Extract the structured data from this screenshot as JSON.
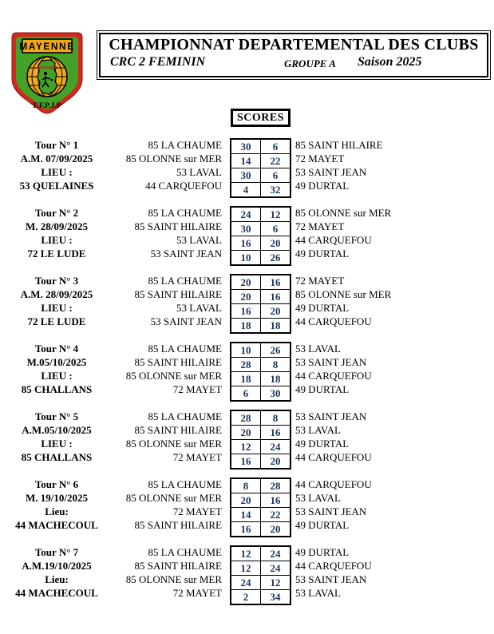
{
  "logo": {
    "region": "MAYENNE",
    "sport": "PETANQUE",
    "federation": "F.F.P.J.P",
    "colors": {
      "red": "#d3281e",
      "green": "#44a229",
      "gold": "#f0a818"
    }
  },
  "header": {
    "title": "CHAMPIONNAT DEPARTEMENTAL DES CLUBS",
    "competition": "CRC 2 FEMININ",
    "group": "GROUPE A",
    "season": "Saison 2025"
  },
  "scores_label": "SCORES",
  "colors": {
    "score_text": "#17365D"
  },
  "rounds": [
    {
      "tour": "Tour N° 1",
      "date": "A.M. 07/09/2025",
      "lieu_label": "LIEU :",
      "host": "53 QUELAINES",
      "matches": [
        {
          "home": "85 LA CHAUME",
          "home_score": "30",
          "away_score": "6",
          "away": "85 SAINT HILAIRE"
        },
        {
          "home": "85 OLONNE sur MER",
          "home_score": "14",
          "away_score": "22",
          "away": "72 MAYET"
        },
        {
          "home": "53 LAVAL",
          "home_score": "30",
          "away_score": "6",
          "away": "53 SAINT JEAN"
        },
        {
          "home": "44 CARQUEFOU",
          "home_score": "4",
          "away_score": "32",
          "away": "49 DURTAL"
        }
      ]
    },
    {
      "tour": "Tour N° 2",
      "date": "M. 28/09/2025",
      "lieu_label": "LIEU :",
      "host": "72 LE LUDE",
      "matches": [
        {
          "home": "85 LA CHAUME",
          "home_score": "24",
          "away_score": "12",
          "away": "85 OLONNE sur MER"
        },
        {
          "home": "85 SAINT HILAIRE",
          "home_score": "30",
          "away_score": "6",
          "away": "72 MAYET"
        },
        {
          "home": "53 LAVAL",
          "home_score": "16",
          "away_score": "20",
          "away": "44 CARQUEFOU"
        },
        {
          "home": "53 SAINT JEAN",
          "home_score": "10",
          "away_score": "26",
          "away": "49 DURTAL"
        }
      ]
    },
    {
      "tour": "Tour N° 3",
      "date": "A.M. 28/09/2025",
      "lieu_label": "LIEU :",
      "host": "72 LE LUDE",
      "matches": [
        {
          "home": "85 LA CHAUME",
          "home_score": "20",
          "away_score": "16",
          "away": "72 MAYET"
        },
        {
          "home": "85 SAINT HILAIRE",
          "home_score": "20",
          "away_score": "16",
          "away": "85 OLONNE sur MER"
        },
        {
          "home": "53 LAVAL",
          "home_score": "16",
          "away_score": "20",
          "away": "49 DURTAL"
        },
        {
          "home": "53 SAINT JEAN",
          "home_score": "18",
          "away_score": "18",
          "away": "44 CARQUEFOU"
        }
      ]
    },
    {
      "tour": "Tour N° 4",
      "date": "M.05/10/2025",
      "lieu_label": "LIEU :",
      "host": "85 CHALLANS",
      "matches": [
        {
          "home": "85 LA CHAUME",
          "home_score": "10",
          "away_score": "26",
          "away": "53 LAVAL"
        },
        {
          "home": "85 SAINT HILAIRE",
          "home_score": "28",
          "away_score": "8",
          "away": "53 SAINT JEAN"
        },
        {
          "home": "85 OLONNE sur MER",
          "home_score": "18",
          "away_score": "18",
          "away": "44 CARQUEFOU"
        },
        {
          "home": "72 MAYET",
          "home_score": "6",
          "away_score": "30",
          "away": "49 DURTAL"
        }
      ]
    },
    {
      "tour": "Tour N° 5",
      "date": "A.M.05/10/2025",
      "lieu_label": "LIEU :",
      "host": "85 CHALLANS",
      "matches": [
        {
          "home": "85 LA CHAUME",
          "home_score": "28",
          "away_score": "8",
          "away": "53 SAINT JEAN"
        },
        {
          "home": "85 SAINT HILAIRE",
          "home_score": "20",
          "away_score": "16",
          "away": "53 LAVAL"
        },
        {
          "home": "85 OLONNE sur MER",
          "home_score": "12",
          "away_score": "24",
          "away": "49 DURTAL"
        },
        {
          "home": "72 MAYET",
          "home_score": "16",
          "away_score": "20",
          "away": "44 CARQUEFOU"
        }
      ]
    },
    {
      "tour": "Tour N° 6",
      "date": "M. 19/10/2025",
      "lieu_label": "Lieu:",
      "host": "44 MACHECOUL",
      "matches": [
        {
          "home": "85 LA CHAUME",
          "home_score": "8",
          "away_score": "28",
          "away": "44 CARQUEFOU"
        },
        {
          "home": "85 OLONNE sur MER",
          "home_score": "20",
          "away_score": "16",
          "away": "53 LAVAL"
        },
        {
          "home": "72 MAYET",
          "home_score": "14",
          "away_score": "22",
          "away": "53 SAINT JEAN"
        },
        {
          "home": "85 SAINT HILAIRE",
          "home_score": "16",
          "away_score": "20",
          "away": "49 DURTAL"
        }
      ]
    },
    {
      "tour": "Tour N° 7",
      "date": "A.M.19/10/2025",
      "lieu_label": "Lieu:",
      "host": "44 MACHECOUL",
      "matches": [
        {
          "home": "85 LA CHAUME",
          "home_score": "12",
          "away_score": "24",
          "away": "49 DURTAL"
        },
        {
          "home": "85 SAINT HILAIRE",
          "home_score": "12",
          "away_score": "24",
          "away": "44 CARQUEFOU"
        },
        {
          "home": "85 OLONNE sur MER",
          "home_score": "24",
          "away_score": "12",
          "away": "53 SAINT JEAN"
        },
        {
          "home": "72 MAYET",
          "home_score": "2",
          "away_score": "34",
          "away": "53 LAVAL"
        }
      ]
    }
  ]
}
